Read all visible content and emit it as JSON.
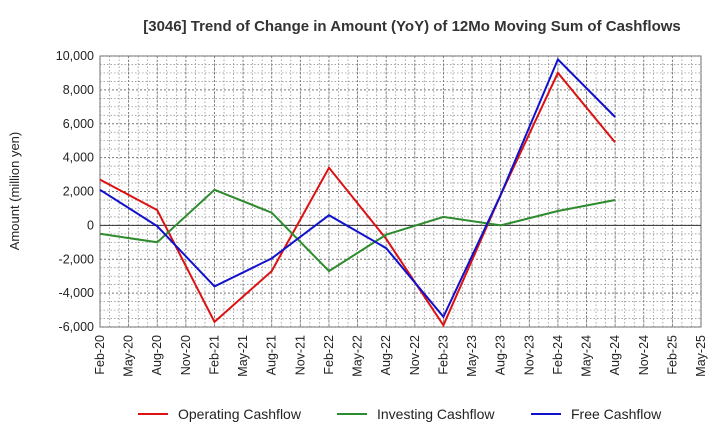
{
  "chart_data": {
    "type": "line",
    "title": "[3046]  Trend of Change in Amount (YoY) of 12Mo Moving Sum of Cashflows",
    "xlabel": "",
    "ylabel": "Amount (million yen)",
    "ylim": [
      -6000,
      10000
    ],
    "yticks": [
      -6000,
      -4000,
      -2000,
      0,
      2000,
      4000,
      6000,
      8000,
      10000
    ],
    "ytick_labels": [
      "-6,000",
      "-4,000",
      "-2,000",
      "0",
      "2,000",
      "4,000",
      "6,000",
      "8,000",
      "10,000"
    ],
    "categories": [
      "Feb-20",
      "May-20",
      "Aug-20",
      "Nov-20",
      "Feb-21",
      "May-21",
      "Aug-21",
      "Nov-21",
      "Feb-22",
      "May-22",
      "Aug-22",
      "Nov-22",
      "Feb-23",
      "May-23",
      "Aug-23",
      "Nov-23",
      "Feb-24",
      "May-24",
      "Aug-24",
      "Nov-24",
      "Feb-25",
      "May-25"
    ],
    "grid": true,
    "legend_position": "bottom",
    "series": [
      {
        "name": "Operating Cashflow",
        "color": "#dd1111",
        "values": [
          2700,
          null,
          900,
          null,
          -5700,
          null,
          -2700,
          null,
          3400,
          null,
          -800,
          null,
          -5900,
          null,
          1800,
          null,
          9000,
          null,
          4900,
          null,
          null,
          null
        ]
      },
      {
        "name": "Investing Cashflow",
        "color": "#2e8b2e",
        "values": [
          -500,
          null,
          -1000,
          null,
          2100,
          null,
          750,
          null,
          -2700,
          null,
          -550,
          null,
          500,
          null,
          0,
          null,
          850,
          null,
          1500,
          null,
          null,
          null
        ]
      },
      {
        "name": "Free Cashflow",
        "color": "#1111cc",
        "values": [
          2100,
          null,
          -50,
          null,
          -3600,
          null,
          -1950,
          null,
          600,
          null,
          -1350,
          null,
          -5400,
          null,
          1800,
          null,
          9800,
          null,
          6400,
          null,
          null,
          null
        ]
      }
    ]
  }
}
